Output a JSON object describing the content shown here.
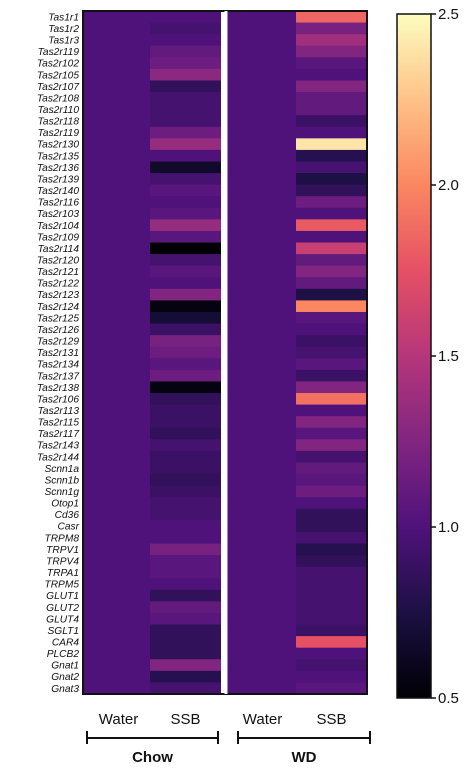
{
  "chart_data": {
    "type": "heatmap",
    "title": "",
    "columns": [
      "Water",
      "SSB",
      "Water",
      "SSB"
    ],
    "groups": [
      {
        "label": "Chow",
        "columns": [
          0,
          1
        ]
      },
      {
        "label": "WD",
        "columns": [
          2,
          3
        ]
      }
    ],
    "rows": [
      {
        "gene": "Tas1r1",
        "values": [
          1.0,
          1.0,
          1.0,
          1.85
        ]
      },
      {
        "gene": "Tas1r2",
        "values": [
          1.0,
          0.95,
          1.0,
          1.2
        ]
      },
      {
        "gene": "Tas1r3",
        "values": [
          1.0,
          1.0,
          1.0,
          1.4
        ]
      },
      {
        "gene": "Tas2r119",
        "values": [
          1.0,
          1.1,
          1.0,
          1.25
        ]
      },
      {
        "gene": "Tas2r102",
        "values": [
          1.0,
          1.15,
          1.0,
          1.05
        ]
      },
      {
        "gene": "Tas2r105",
        "values": [
          1.0,
          1.3,
          1.0,
          1.0
        ]
      },
      {
        "gene": "Tas2r107",
        "values": [
          1.0,
          0.85,
          1.0,
          1.25
        ]
      },
      {
        "gene": "Tas2r108",
        "values": [
          1.0,
          0.95,
          1.0,
          1.1
        ]
      },
      {
        "gene": "Tas2r110",
        "values": [
          1.0,
          0.95,
          1.0,
          1.1
        ]
      },
      {
        "gene": "Tas2r118",
        "values": [
          1.0,
          0.95,
          1.0,
          0.9
        ]
      },
      {
        "gene": "Tas2r119",
        "values": [
          1.0,
          1.15,
          1.0,
          1.0
        ]
      },
      {
        "gene": "Tas2r130",
        "values": [
          1.0,
          1.35,
          1.0,
          2.4
        ]
      },
      {
        "gene": "Tas2r135",
        "values": [
          1.0,
          1.0,
          1.0,
          0.8
        ]
      },
      {
        "gene": "Tas2r136",
        "values": [
          1.0,
          0.65,
          1.0,
          0.95
        ]
      },
      {
        "gene": "Tas2r139",
        "values": [
          1.0,
          0.95,
          1.0,
          0.75
        ]
      },
      {
        "gene": "Tas2r140",
        "values": [
          1.0,
          1.05,
          1.0,
          0.85
        ]
      },
      {
        "gene": "Tas2r116",
        "values": [
          1.0,
          1.0,
          1.0,
          1.15
        ]
      },
      {
        "gene": "Tas2r103",
        "values": [
          1.0,
          1.05,
          1.0,
          1.0
        ]
      },
      {
        "gene": "Tas2r104",
        "values": [
          1.0,
          1.35,
          1.0,
          1.8
        ]
      },
      {
        "gene": "Tas2r109",
        "values": [
          1.0,
          1.05,
          1.0,
          1.0
        ]
      },
      {
        "gene": "Tas2r114",
        "values": [
          1.0,
          0.5,
          1.0,
          1.6
        ]
      },
      {
        "gene": "Tas2r120",
        "values": [
          1.0,
          0.95,
          1.0,
          1.1
        ]
      },
      {
        "gene": "Tas2r121",
        "values": [
          1.0,
          1.05,
          1.0,
          1.25
        ]
      },
      {
        "gene": "Tas2r122",
        "values": [
          1.0,
          1.0,
          1.0,
          1.1
        ]
      },
      {
        "gene": "Tas2r123",
        "values": [
          1.0,
          1.25,
          1.0,
          0.75
        ]
      },
      {
        "gene": "Tas2r124",
        "values": [
          1.0,
          0.55,
          1.0,
          2.0
        ]
      },
      {
        "gene": "Tas2r125",
        "values": [
          1.0,
          0.7,
          1.0,
          1.05
        ]
      },
      {
        "gene": "Tas2r126",
        "values": [
          1.0,
          0.9,
          1.0,
          1.0
        ]
      },
      {
        "gene": "Tas2r129",
        "values": [
          1.0,
          1.2,
          1.0,
          0.9
        ]
      },
      {
        "gene": "Tas2r131",
        "values": [
          1.0,
          1.15,
          1.0,
          0.95
        ]
      },
      {
        "gene": "Tas2r134",
        "values": [
          1.0,
          1.05,
          1.0,
          1.05
        ]
      },
      {
        "gene": "Tas2r137",
        "values": [
          1.0,
          1.15,
          1.0,
          0.9
        ]
      },
      {
        "gene": "Tas2r138",
        "values": [
          1.0,
          0.55,
          1.0,
          1.25
        ]
      },
      {
        "gene": "Tas2r106",
        "values": [
          1.0,
          0.85,
          1.0,
          1.9
        ]
      },
      {
        "gene": "Tas2r113",
        "values": [
          1.0,
          0.9,
          1.0,
          1.0
        ]
      },
      {
        "gene": "Tas2r115",
        "values": [
          1.0,
          0.9,
          1.0,
          1.25
        ]
      },
      {
        "gene": "Tas2r117",
        "values": [
          1.0,
          0.85,
          1.0,
          1.05
        ]
      },
      {
        "gene": "Tas2r143",
        "values": [
          1.0,
          0.95,
          1.0,
          1.25
        ]
      },
      {
        "gene": "Tas2r144",
        "values": [
          1.0,
          0.9,
          1.0,
          0.95
        ]
      },
      {
        "gene": "Scnn1a",
        "values": [
          1.0,
          0.9,
          1.0,
          1.1
        ]
      },
      {
        "gene": "Scnn1b",
        "values": [
          1.0,
          0.85,
          1.0,
          1.05
        ]
      },
      {
        "gene": "Scnn1g",
        "values": [
          1.0,
          0.9,
          1.0,
          1.15
        ]
      },
      {
        "gene": "Otop1",
        "values": [
          1.0,
          0.95,
          1.0,
          1.0
        ]
      },
      {
        "gene": "Cd36",
        "values": [
          1.0,
          0.95,
          1.0,
          0.85
        ]
      },
      {
        "gene": "Casr",
        "values": [
          1.0,
          1.0,
          1.0,
          0.85
        ]
      },
      {
        "gene": "TRPM8",
        "values": [
          1.0,
          1.0,
          1.0,
          0.95
        ]
      },
      {
        "gene": "TRPV1",
        "values": [
          1.0,
          1.2,
          1.0,
          0.8
        ]
      },
      {
        "gene": "TRPV4",
        "values": [
          1.0,
          1.05,
          1.0,
          0.85
        ]
      },
      {
        "gene": "TRPA1",
        "values": [
          1.0,
          1.05,
          1.0,
          0.95
        ]
      },
      {
        "gene": "TRPM5",
        "values": [
          1.0,
          1.0,
          1.0,
          0.95
        ]
      },
      {
        "gene": "GLUT1",
        "values": [
          1.0,
          0.85,
          1.0,
          0.95
        ]
      },
      {
        "gene": "GLUT2",
        "values": [
          1.0,
          1.1,
          1.0,
          0.95
        ]
      },
      {
        "gene": "GLUT4",
        "values": [
          1.0,
          1.05,
          1.0,
          0.95
        ]
      },
      {
        "gene": "SGLT1",
        "values": [
          1.0,
          0.85,
          1.0,
          0.9
        ]
      },
      {
        "gene": "CAR4",
        "values": [
          1.0,
          0.85,
          1.0,
          1.75
        ]
      },
      {
        "gene": "PLCB2",
        "values": [
          1.0,
          0.85,
          1.0,
          1.0
        ]
      },
      {
        "gene": "Gnat1",
        "values": [
          1.0,
          1.25,
          1.0,
          0.95
        ]
      },
      {
        "gene": "Gnat2",
        "values": [
          1.0,
          0.8,
          1.0,
          1.0
        ]
      },
      {
        "gene": "Gnat3",
        "values": [
          1.0,
          0.95,
          1.0,
          1.05
        ]
      }
    ],
    "colorbar": {
      "min": 0.5,
      "max": 2.5,
      "ticks": [
        "0.5",
        "1.0",
        "1.5",
        "2.0",
        "2.5"
      ],
      "tick_values": [
        0.5,
        1.0,
        1.5,
        2.0,
        2.5
      ],
      "colormap": "magma",
      "stops": [
        "#000004",
        "#1c1044",
        "#4f127b",
        "#812581",
        "#b5367a",
        "#e55064",
        "#fb8761",
        "#fec287",
        "#fcfdbf"
      ]
    },
    "colors": {
      "divider": "#ffffff",
      "frame": "#111111"
    }
  }
}
